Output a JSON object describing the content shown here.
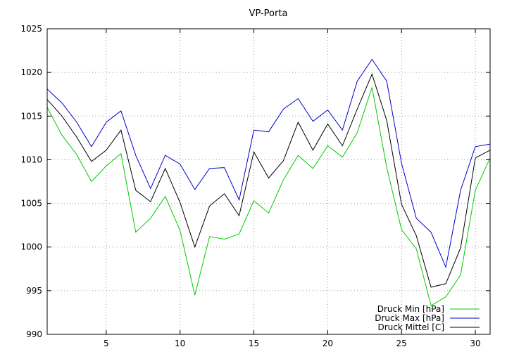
{
  "chart_data": {
    "type": "line",
    "title": "VP-Porta",
    "xlabel": "",
    "ylabel": "",
    "xlim": [
      1,
      31
    ],
    "ylim": [
      990,
      1025
    ],
    "x_ticks": [
      5,
      10,
      15,
      20,
      25,
      30
    ],
    "y_ticks": [
      990,
      995,
      1000,
      1005,
      1010,
      1015,
      1020,
      1025
    ],
    "grid": true,
    "legend_position": "bottom-right",
    "x": [
      1,
      2,
      3,
      4,
      5,
      6,
      7,
      8,
      9,
      10,
      11,
      12,
      13,
      14,
      15,
      16,
      17,
      18,
      19,
      20,
      21,
      22,
      23,
      24,
      25,
      26,
      27,
      28,
      29,
      30,
      31
    ],
    "series": [
      {
        "name": "Druck Min [hPa]",
        "color": "#00cc00",
        "values": [
          1016.0,
          1012.8,
          1010.6,
          1007.5,
          1009.3,
          1010.7,
          1001.7,
          1003.3,
          1005.8,
          1001.9,
          994.5,
          1001.2,
          1000.9,
          1001.5,
          1005.3,
          1003.9,
          1007.7,
          1010.5,
          1009.0,
          1011.6,
          1010.3,
          1013.1,
          1018.3,
          1009.1,
          1002.0,
          999.8,
          993.3,
          994.3,
          996.8,
          1006.5,
          1010.2
        ]
      },
      {
        "name": "Druck Max [hPa]",
        "color": "#0000cc",
        "values": [
          1018.1,
          1016.5,
          1014.3,
          1011.5,
          1014.3,
          1015.6,
          1010.5,
          1006.7,
          1010.5,
          1009.5,
          1006.6,
          1009.0,
          1009.1,
          1005.4,
          1013.4,
          1013.2,
          1015.8,
          1017.0,
          1014.4,
          1015.7,
          1013.4,
          1019.0,
          1021.5,
          1019.0,
          1009.6,
          1003.3,
          1001.7,
          997.7,
          1006.5,
          1011.5,
          1011.8
        ]
      },
      {
        "name": "Druck Mittel [C]",
        "color": "#000000",
        "values": [
          1016.9,
          1015.0,
          1012.6,
          1009.8,
          1011.1,
          1013.4,
          1006.5,
          1005.2,
          1009.0,
          1005.1,
          1000.0,
          1004.7,
          1006.1,
          1003.6,
          1010.9,
          1007.9,
          1009.9,
          1014.3,
          1011.1,
          1014.1,
          1011.6,
          1015.8,
          1019.8,
          1014.5,
          1004.9,
          1001.3,
          995.4,
          995.8,
          999.9,
          1010.2,
          1011.1
        ]
      }
    ]
  }
}
